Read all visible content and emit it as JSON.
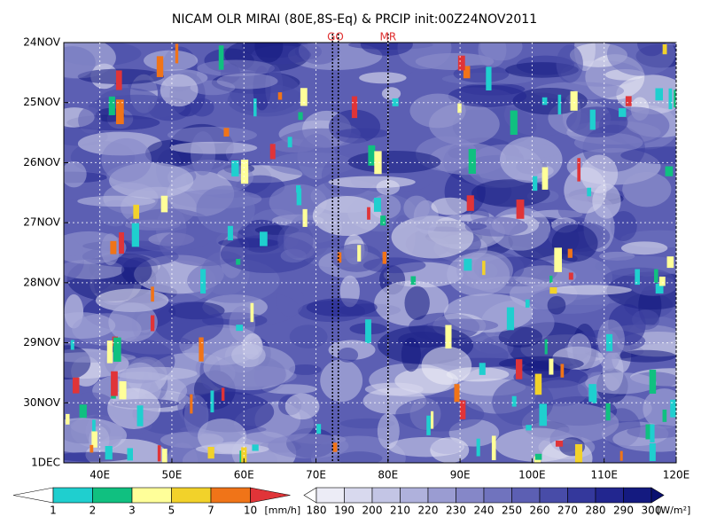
{
  "chart_data": {
    "type": "heatmap",
    "title": "NICAM OLR MIRAI (80E,8S-Eq) & PRCIP init:00Z24NOV2011",
    "xlim": [
      35,
      120
    ],
    "xticks": [
      {
        "value": 40,
        "label": "40E"
      },
      {
        "value": 50,
        "label": "50E"
      },
      {
        "value": 60,
        "label": "60E"
      },
      {
        "value": 70,
        "label": "70E"
      },
      {
        "value": 80,
        "label": "80E"
      },
      {
        "value": 90,
        "label": "90E"
      },
      {
        "value": 100,
        "label": "100E"
      },
      {
        "value": 110,
        "label": "110E"
      },
      {
        "value": 120,
        "label": "120E"
      }
    ],
    "y": [
      "24NOV",
      "25NOV",
      "26NOV",
      "27NOV",
      "28NOV",
      "29NOV",
      "30NOV",
      "1DEC"
    ],
    "grid": true,
    "markers": [
      {
        "label": "GO",
        "x": [
          72.3,
          73.1
        ]
      },
      {
        "label": "MR",
        "x": [
          80
        ]
      }
    ],
    "colorbars": [
      {
        "unit": "[mm/h]",
        "levels": [
          1,
          2,
          3,
          5,
          7,
          10
        ],
        "colors": [
          "#ffffff",
          "#1fcfcf",
          "#10c080",
          "#ffff99",
          "#f2d22a",
          "#f07418",
          "#e03438"
        ]
      },
      {
        "unit": "[W/m²]",
        "levels": [
          180,
          190,
          200,
          210,
          220,
          230,
          240,
          250,
          260,
          270,
          280,
          290,
          300
        ],
        "colors": [
          "#ffffff",
          "#ececf6",
          "#d8d9ee",
          "#c3c5e5",
          "#afb1dc",
          "#9a9cd2",
          "#8587c8",
          "#7073be",
          "#5c5fb3",
          "#484ca8",
          "#34389c",
          "#22268f",
          "#141a80",
          "#0a1070"
        ]
      }
    ]
  }
}
